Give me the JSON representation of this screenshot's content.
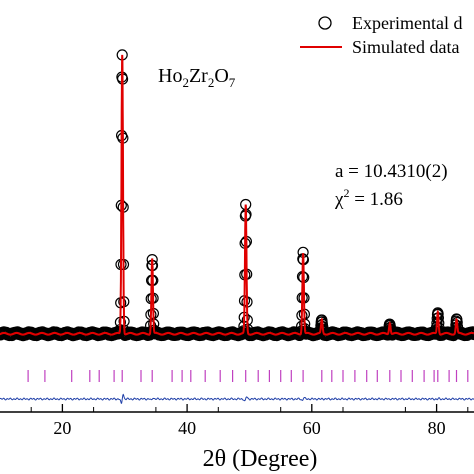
{
  "chart_data": {
    "type": "line",
    "title": "",
    "compound": {
      "base1": "Ho",
      "sub1": "2",
      "base2": "Zr",
      "sub2": "2",
      "base3": "O",
      "sub3": "7"
    },
    "annotations": {
      "lattice": "a = 10.4310(2)",
      "chi_symbol": "χ",
      "chi_exp": "2",
      "chi_value": " =  1.86"
    },
    "xlabel": "2θ (Degree)",
    "ylabel": "",
    "xlim": [
      10,
      86
    ],
    "ylim": [
      -0.28,
      1.08
    ],
    "x_ticks": [
      20,
      40,
      60,
      80
    ],
    "x_tick_labels": [
      "20",
      "40",
      "60",
      "80"
    ],
    "grid": false,
    "legend_position": "top-right",
    "series": [
      {
        "name": "Experimental d",
        "style": "open-circles",
        "color": "#000000"
      },
      {
        "name": "Simulated data",
        "style": "line",
        "color": "#e00000"
      },
      {
        "name": "",
        "style": "difference-line",
        "color": "#1f3fa8"
      },
      {
        "name": "",
        "style": "bragg-ticks",
        "color": "#c040c0"
      }
    ],
    "background_level": 0.0,
    "peaks": [
      {
        "x": 29.6,
        "y": 1.0
      },
      {
        "x": 34.4,
        "y": 0.27
      },
      {
        "x": 49.4,
        "y": 0.46
      },
      {
        "x": 58.6,
        "y": 0.29
      },
      {
        "x": 61.6,
        "y": 0.05
      },
      {
        "x": 72.5,
        "y": 0.04
      },
      {
        "x": 80.2,
        "y": 0.08
      },
      {
        "x": 83.2,
        "y": 0.05
      }
    ],
    "bragg_positions": [
      14.5,
      17.2,
      21.5,
      24.4,
      25.9,
      28.3,
      29.6,
      32.6,
      34.4,
      37.6,
      39.2,
      40.6,
      42.9,
      45.3,
      47.3,
      49.4,
      51.4,
      53.2,
      55.0,
      56.7,
      58.6,
      61.6,
      63.2,
      65.0,
      66.9,
      68.8,
      70.5,
      72.5,
      74.3,
      76.1,
      78.0,
      79.6,
      80.2,
      82.0,
      83.2,
      85.0
    ]
  }
}
